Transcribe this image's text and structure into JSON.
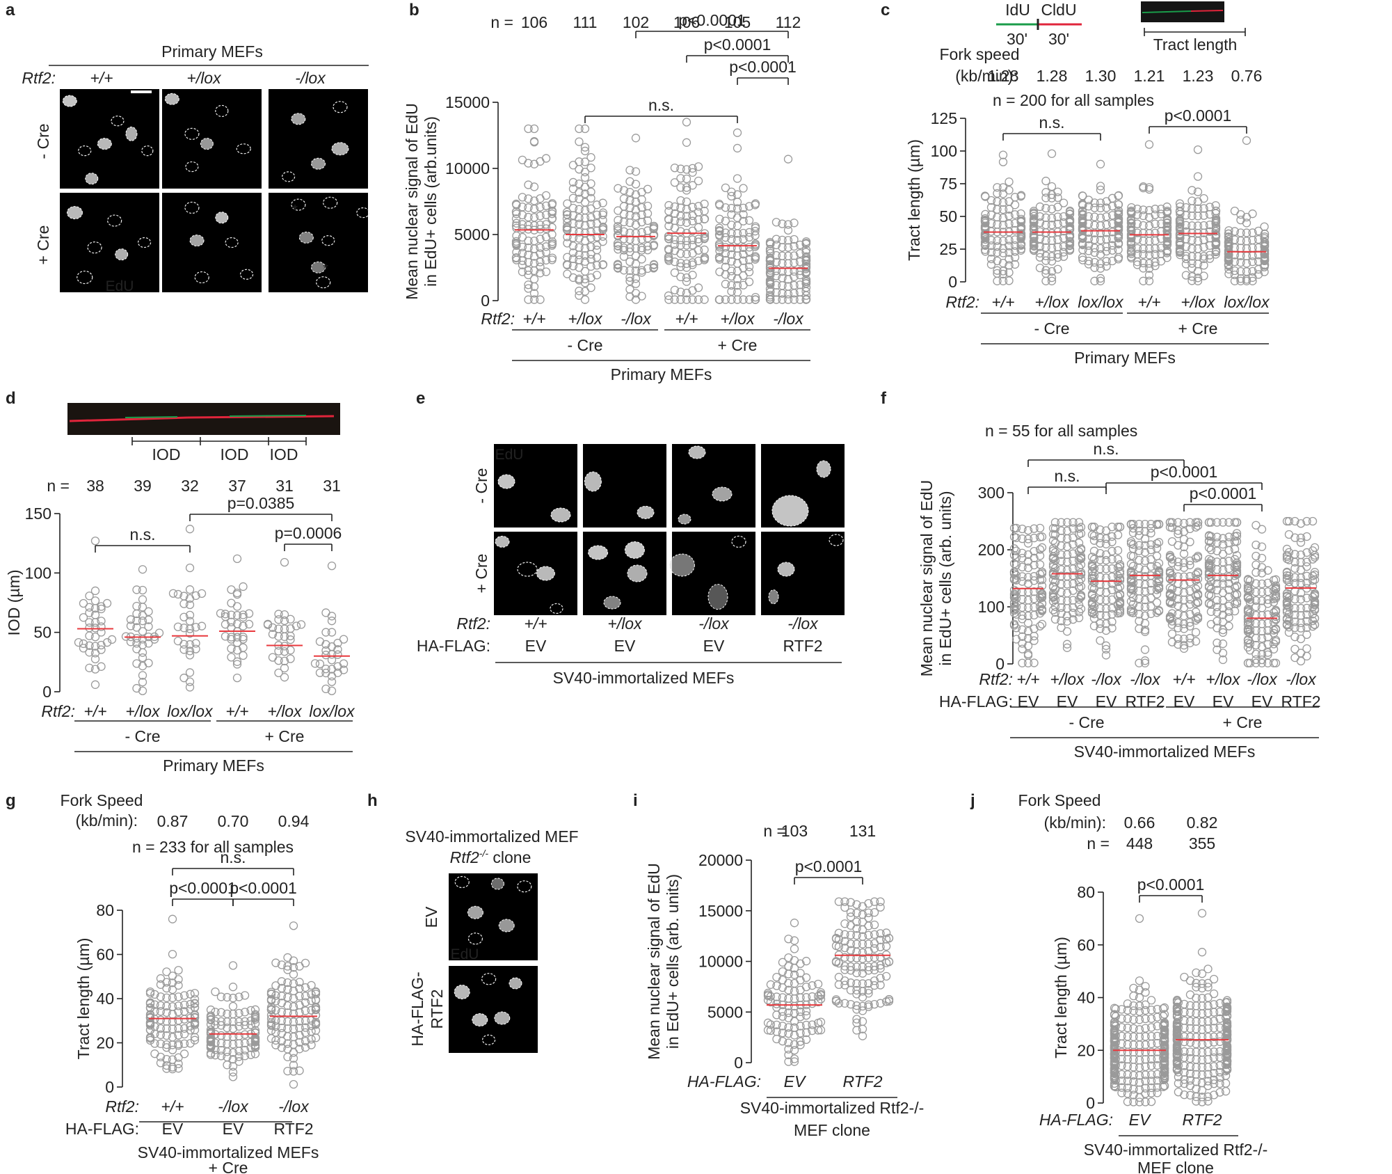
{
  "panel_letters": [
    "a",
    "b",
    "c",
    "d",
    "e",
    "f",
    "g",
    "h",
    "i",
    "j"
  ],
  "colors": {
    "point": "#9a9a9a",
    "mean": "#e8383d",
    "idu": "#1a9c4a",
    "cldu": "#e0253b",
    "line": "#222222"
  },
  "panel_a": {
    "header": "Primary MEFs",
    "rtf2_label": "Rtf2:",
    "genotypes": [
      "+/+",
      "+/lox",
      "-/lox"
    ],
    "row_labels": [
      "- Cre",
      "+ Cre"
    ],
    "stain": "EdU"
  },
  "panel_e": {
    "stain": "EdU",
    "row_labels": [
      "- Cre",
      "+ Cre"
    ],
    "rtf2_label": "Rtf2:",
    "genotypes": [
      "+/+",
      "+/lox",
      "-/lox",
      "-/lox"
    ],
    "haflag_label": "HA-FLAG:",
    "constructs": [
      "EV",
      "EV",
      "EV",
      "RTF2"
    ],
    "group_label": "SV40-immortalized MEFs"
  },
  "panel_h": {
    "title_line1": "SV40-immortalized MEF",
    "title_line2": "Rtf2",
    "title_sup": "-/-",
    "title_line2_rest": " clone",
    "row_labels": [
      "EV",
      "HA-FLAG-",
      "RTF2"
    ],
    "stain": "EdU"
  },
  "panel_c_header": {
    "idu": "IdU",
    "cldu": "CldU",
    "t1": "30'",
    "t2": "30'",
    "tract": "Tract length",
    "fork_label": "Fork speed",
    "fork_unit": "(kb/min):"
  },
  "panel_d_header": {
    "iod_labels": [
      "IOD",
      "IOD",
      "IOD"
    ]
  },
  "chart_data": [
    {
      "panel": "b",
      "type": "scatter",
      "ylabel": "Mean nuclear signal of EdU in EdU+ cells (arb.units)",
      "ylabel_lines": [
        "Mean nuclear signal of EdU",
        "in EdU+ cells (arb.units)"
      ],
      "ylim": [
        0,
        15000
      ],
      "yticks": [
        0,
        5000,
        10000,
        15000
      ],
      "n_label": "n =",
      "n": [
        106,
        111,
        102,
        106,
        105,
        112
      ],
      "categories": [
        "+/+",
        "+/lox",
        "-/lox",
        "+/+",
        "+/lox",
        "-/lox"
      ],
      "row_label": "Rtf2:",
      "means": [
        5350,
        5000,
        4850,
        5100,
        4150,
        2450
      ],
      "spread": [
        2950,
        2850,
        2750,
        2800,
        2400,
        1750
      ],
      "max_values": [
        13000,
        13000,
        12300,
        13500,
        12700,
        10700
      ],
      "group_labels": [
        "- Cre",
        "+ Cre"
      ],
      "group_spans": [
        [
          0,
          2
        ],
        [
          3,
          5
        ]
      ],
      "super_label": "Primary MEFs",
      "significance": [
        {
          "from": 1,
          "to": 4,
          "label": "n.s."
        },
        {
          "from": 5,
          "to": 4,
          "label": "p<0.0001"
        },
        {
          "from": 5,
          "to": 3,
          "label": "p<0.0001"
        },
        {
          "from": 5,
          "to": 2,
          "label": "p<0.0001"
        }
      ]
    },
    {
      "panel": "c",
      "type": "scatter",
      "ylabel": "Tract length (µm)",
      "ylim": [
        0,
        125
      ],
      "yticks": [
        0,
        25,
        50,
        75,
        100,
        125
      ],
      "fork_speed": [
        "1.28",
        "1.28",
        "1.30",
        "1.21",
        "1.23",
        "0.76"
      ],
      "n_note": "n = 200 for all samples",
      "categories": [
        "+/+",
        "+/lox",
        "lox/lox",
        "+/+",
        "+/lox",
        "lox/lox"
      ],
      "row_label": "Rtf2:",
      "means": [
        38,
        38,
        39,
        36,
        37,
        23
      ],
      "spread": [
        17,
        17,
        17,
        16,
        16,
        11
      ],
      "max_values": [
        97,
        98,
        90,
        105,
        101,
        108
      ],
      "group_labels": [
        "- Cre",
        "+ Cre"
      ],
      "group_spans": [
        [
          0,
          2
        ],
        [
          3,
          5
        ]
      ],
      "super_label": "Primary MEFs",
      "significance": [
        {
          "from": 0,
          "to": 2,
          "label": "n.s."
        },
        {
          "from": 3,
          "to": 5,
          "label": "p<0.0001"
        }
      ]
    },
    {
      "panel": "d",
      "type": "scatter",
      "ylabel": "IOD  (µm)",
      "ylim": [
        0,
        150
      ],
      "yticks": [
        0,
        50,
        100,
        150
      ],
      "n_label": "n =",
      "n": [
        38,
        39,
        32,
        37,
        31,
        31
      ],
      "categories": [
        "+/+",
        "+/lox",
        "lox/lox",
        "+/+",
        "+/lox",
        "lox/lox"
      ],
      "row_label": "Rtf2:",
      "means": [
        53,
        46,
        47,
        51,
        39,
        30
      ],
      "spread": [
        22,
        20,
        23,
        20,
        16,
        17
      ],
      "max_values": [
        127,
        103,
        137,
        112,
        109,
        106
      ],
      "group_labels": [
        "- Cre",
        "+ Cre"
      ],
      "group_spans": [
        [
          0,
          2
        ],
        [
          3,
          5
        ]
      ],
      "super_label": "Primary MEFs",
      "significance": [
        {
          "from": 0,
          "to": 2,
          "label": "n.s."
        },
        {
          "from": 2,
          "to": 5,
          "label": "p=0.0385"
        },
        {
          "from": 4,
          "to": 5,
          "label": "p=0.0006"
        }
      ]
    },
    {
      "panel": "f",
      "type": "scatter",
      "ylabel": "Mean nuclear signal of EdU in EdU+ cells (arb. units)",
      "ylabel_lines": [
        "Mean nuclear signal of EdU",
        "in EdU+ cells (arb. units)"
      ],
      "ylim": [
        0,
        300
      ],
      "yticks": [
        0,
        100,
        200,
        300
      ],
      "n_note": "n = 55 for all samples",
      "categories": [
        "+/+",
        "+/lox",
        "-/lox",
        "-/lox",
        "+/+",
        "+/lox",
        "-/lox",
        "-/lox"
      ],
      "row_label": "Rtf2:",
      "row2_label": "HA-FLAG:",
      "row2": [
        "EV",
        "EV",
        "EV",
        "RTF2",
        "EV",
        "EV",
        "EV",
        "RTF2"
      ],
      "means": [
        132,
        158,
        145,
        155,
        147,
        155,
        80,
        133
      ],
      "spread": [
        58,
        55,
        60,
        58,
        62,
        60,
        55,
        55
      ],
      "max_values": [
        238,
        248,
        240,
        245,
        248,
        248,
        243,
        250
      ],
      "group_labels": [
        "- Cre",
        "+ Cre"
      ],
      "group_spans": [
        [
          0,
          3
        ],
        [
          4,
          7
        ]
      ],
      "super_label": "SV40-immortalized MEFs",
      "significance": [
        {
          "from": 0,
          "to": 4,
          "label": "n.s."
        },
        {
          "from": 0,
          "to": 2,
          "label": "n.s."
        },
        {
          "from": 2,
          "to": 6,
          "label": "p<0.0001"
        },
        {
          "from": 4,
          "to": 6,
          "label": "p<0.0001"
        }
      ]
    },
    {
      "panel": "g",
      "type": "scatter",
      "ylabel": "Tract length (µm)",
      "ylim": [
        0,
        80
      ],
      "yticks": [
        0,
        20,
        40,
        60,
        80
      ],
      "fork_label": "Fork Speed",
      "fork_unit": "(kb/min):",
      "fork_speed": [
        "0.87",
        "0.70",
        "0.94"
      ],
      "n_note": "n = 233 for all samples",
      "categories": [
        "+/+",
        "-/lox",
        "-/lox"
      ],
      "row_label": "Rtf2:",
      "row2_label": "HA-FLAG:",
      "row2": [
        "EV",
        "EV",
        "RTF2"
      ],
      "means": [
        31,
        24,
        32
      ],
      "spread": [
        11,
        9,
        12
      ],
      "max_values": [
        76,
        55,
        73
      ],
      "group_labels": [
        "SV40-immortalized MEFs",
        "+ Cre"
      ],
      "significance": [
        {
          "from": 0,
          "to": 2,
          "label": "n.s."
        },
        {
          "from": 0,
          "to": 1,
          "label": "p<0.0001"
        },
        {
          "from": 1,
          "to": 2,
          "label": "p<0.0001"
        }
      ]
    },
    {
      "panel": "i",
      "type": "scatter",
      "ylabel": "Mean nuclear signal of EdU in EdU+ cells (arb. units)",
      "ylabel_lines": [
        "Mean nuclear signal of EdU",
        "in EdU+ cells (arb. units)"
      ],
      "ylim": [
        0,
        20000
      ],
      "yticks": [
        0,
        5000,
        10000,
        15000,
        20000
      ],
      "n_label": "n =",
      "n": [
        103,
        131
      ],
      "categories": [
        "EV",
        "RTF2"
      ],
      "row_label": "HA-FLAG:",
      "means": [
        5700,
        10600
      ],
      "spread": [
        3000,
        3300
      ],
      "max_values": [
        13800,
        15900
      ],
      "group_labels": [
        "SV40-immortalized Rtf2-/-",
        "MEF clone"
      ],
      "significance": [
        {
          "from": 0,
          "to": 1,
          "label": "p<0.0001"
        }
      ]
    },
    {
      "panel": "j",
      "type": "scatter",
      "ylabel": "Tract length (µm)",
      "ylim": [
        0,
        80
      ],
      "yticks": [
        0,
        20,
        40,
        60,
        80
      ],
      "fork_label": "Fork Speed",
      "fork_unit": "(kb/min):",
      "fork_speed": [
        "0.66",
        "0.82"
      ],
      "n_label": "n =",
      "n": [
        448,
        355
      ],
      "categories": [
        "EV",
        "RTF2"
      ],
      "row_label": "HA-FLAG:",
      "means": [
        20,
        24
      ],
      "spread": [
        9,
        10
      ],
      "max_values": [
        70,
        72
      ],
      "group_labels": [
        "SV40-immortalized Rtf2-/-",
        "MEF clone"
      ],
      "significance": [
        {
          "from": 0,
          "to": 1,
          "label": "p<0.0001"
        }
      ]
    }
  ]
}
